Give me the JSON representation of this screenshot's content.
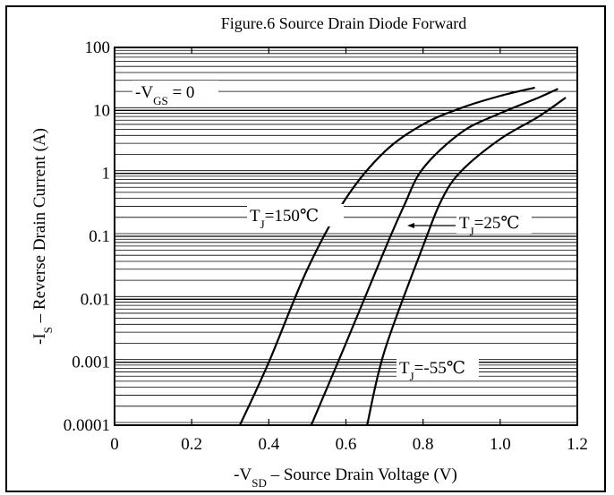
{
  "chart_data": {
    "type": "line",
    "title": "Figure.6 Source Drain Diode Forward",
    "xlabel": {
      "main": "-V",
      "sub": "SD",
      "rest": " – Source Drain Voltage (V)"
    },
    "ylabel": {
      "main": "-I",
      "sub": "S",
      "rest": " – Reverse Drain Current (A)"
    },
    "x_ticks": [
      "0",
      "0.2",
      "0.4",
      "0.6",
      "0.8",
      "1.0",
      "1.2"
    ],
    "x_tick_values": [
      0,
      0.2,
      0.4,
      0.6,
      0.8,
      1.0,
      1.2
    ],
    "y_ticks": [
      "0.0001",
      "0.001",
      "0.01",
      "0.1",
      "1",
      "10",
      "100"
    ],
    "y_tick_values": [
      0.0001,
      0.001,
      0.01,
      0.1,
      1,
      10,
      100
    ],
    "xlim": [
      0,
      1.2
    ],
    "ylim": [
      0.0001,
      100
    ],
    "yscale": "log",
    "grid": "horizontal log minor lines",
    "condition": {
      "main": "-V",
      "sub": "GS",
      "rest": " = 0"
    },
    "series": [
      {
        "name": "TJ=150℃",
        "label": {
          "main": "T",
          "sub": "J",
          "rest": "=150℃"
        },
        "x": [
          0.325,
          0.4,
          0.5,
          0.6,
          0.7,
          0.8,
          0.9,
          1.0,
          1.09
        ],
        "y": [
          0.0001,
          0.001,
          0.03,
          0.4,
          2.2,
          6,
          11,
          17,
          23
        ]
      },
      {
        "name": "TJ=25℃",
        "label": {
          "main": "T",
          "sub": "J",
          "rest": "=25℃"
        },
        "x": [
          0.51,
          0.6,
          0.7,
          0.75,
          0.8,
          0.9,
          1.0,
          1.1,
          1.15
        ],
        "y": [
          0.0001,
          0.002,
          0.06,
          0.3,
          1.2,
          4.5,
          9,
          16,
          22
        ]
      },
      {
        "name": "TJ=-55℃",
        "label": {
          "main": "T",
          "sub": "J",
          "rest": "=-55℃"
        },
        "x": [
          0.655,
          0.7,
          0.8,
          0.85,
          0.9,
          1.0,
          1.1,
          1.17
        ],
        "y": [
          0.0001,
          0.0015,
          0.07,
          0.4,
          1.1,
          3.5,
          8,
          16
        ]
      }
    ]
  }
}
